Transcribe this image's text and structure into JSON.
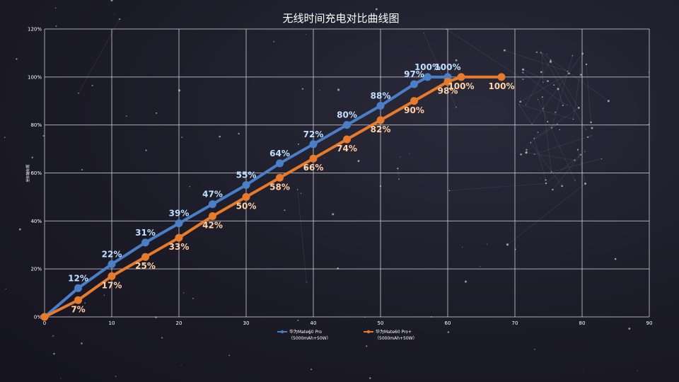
{
  "chart_data": {
    "type": "line",
    "title": "无线时间充电对比曲线图",
    "xlabel": "",
    "ylabel": "坐标轴标题",
    "xlim": [
      0,
      90
    ],
    "ylim": [
      0,
      120
    ],
    "x_ticks": [
      "0",
      "10",
      "20",
      "30",
      "40",
      "50",
      "60",
      "70",
      "80",
      "90"
    ],
    "y_ticks": [
      "0%",
      "20%",
      "40%",
      "60%",
      "80%",
      "100%",
      "120%"
    ],
    "grid": true,
    "legend_position": "bottom",
    "series": [
      {
        "name": "华为Mate60 Pro（5000mAh+50W）",
        "legend_line1": "华为Mate60 Pro",
        "legend_line2": "（5000mAh+50W）",
        "color": "#4a7fc8",
        "label_color": "#bfe0ff",
        "points": [
          {
            "x": 0,
            "y": 0,
            "label": ""
          },
          {
            "x": 5,
            "y": 12,
            "label": "12%"
          },
          {
            "x": 10,
            "y": 22,
            "label": "22%"
          },
          {
            "x": 15,
            "y": 31,
            "label": "31%"
          },
          {
            "x": 20,
            "y": 39,
            "label": "39%"
          },
          {
            "x": 25,
            "y": 47,
            "label": "47%"
          },
          {
            "x": 30,
            "y": 55,
            "label": "55%"
          },
          {
            "x": 35,
            "y": 64,
            "label": "64%"
          },
          {
            "x": 40,
            "y": 72,
            "label": "72%"
          },
          {
            "x": 45,
            "y": 80,
            "label": "80%"
          },
          {
            "x": 50,
            "y": 88,
            "label": "88%"
          },
          {
            "x": 55,
            "y": 97,
            "label": "97%"
          },
          {
            "x": 57,
            "y": 100,
            "label": "100%"
          },
          {
            "x": 60,
            "y": 100,
            "label": "100%"
          }
        ]
      },
      {
        "name": "华为Mate60 Pro+（5000mAh+50W）",
        "legend_line1": "华为Mate60 Pro+",
        "legend_line2": "（5000mAh+50W）",
        "color": "#e87a2c",
        "label_color": "#ffd2a8",
        "points": [
          {
            "x": 0,
            "y": 0,
            "label": ""
          },
          {
            "x": 5,
            "y": 7,
            "label": "7%"
          },
          {
            "x": 10,
            "y": 17,
            "label": "17%"
          },
          {
            "x": 15,
            "y": 25,
            "label": "25%"
          },
          {
            "x": 20,
            "y": 33,
            "label": "33%"
          },
          {
            "x": 25,
            "y": 42,
            "label": "42%"
          },
          {
            "x": 30,
            "y": 50,
            "label": "50%"
          },
          {
            "x": 35,
            "y": 58,
            "label": "58%"
          },
          {
            "x": 40,
            "y": 66,
            "label": "66%"
          },
          {
            "x": 45,
            "y": 74,
            "label": "74%"
          },
          {
            "x": 50,
            "y": 82,
            "label": "82%"
          },
          {
            "x": 55,
            "y": 90,
            "label": "90%"
          },
          {
            "x": 60,
            "y": 98,
            "label": "98%"
          },
          {
            "x": 62,
            "y": 100,
            "label": "100%"
          },
          {
            "x": 68,
            "y": 100,
            "label": "100%"
          }
        ]
      }
    ]
  }
}
